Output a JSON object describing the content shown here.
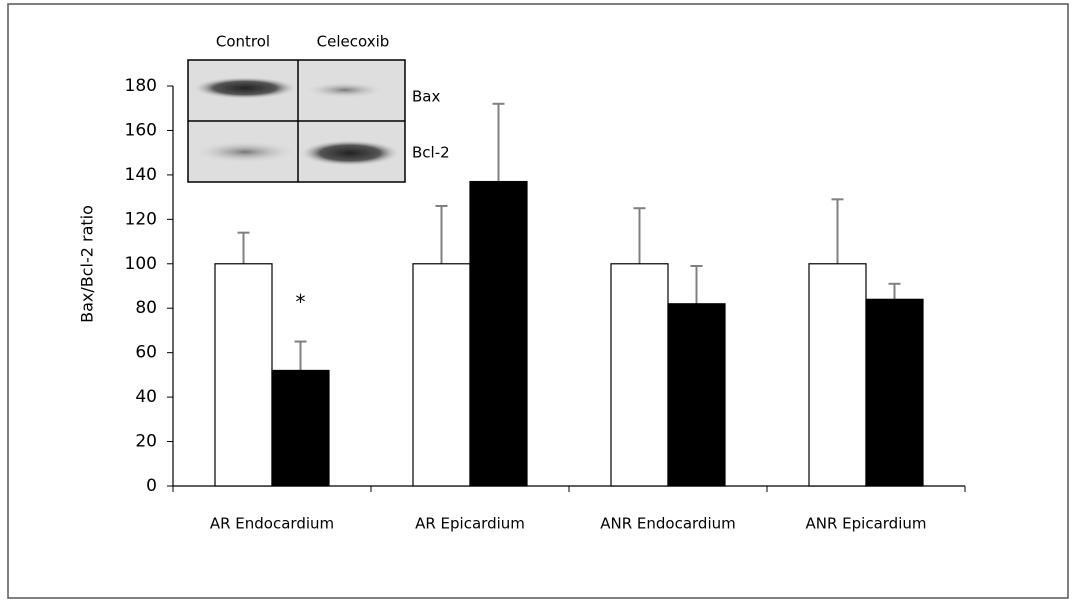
{
  "chart_data": {
    "type": "bar",
    "y_label": "Bax/Bcl-2 ratio",
    "categories": [
      "AR Endocardium",
      "AR Epicardium",
      "ANR Endocardium",
      "ANR Epicardium"
    ],
    "series": [
      {
        "name": "Control",
        "color": "#ffffff",
        "values": [
          100,
          100,
          100,
          100
        ],
        "errors": [
          14,
          26,
          25,
          29
        ]
      },
      {
        "name": "Celecoxib",
        "color": "#000000",
        "values": [
          52,
          137,
          82,
          84
        ],
        "errors": [
          13,
          35,
          17,
          7
        ]
      }
    ],
    "ylim": [
      0,
      180
    ],
    "yticks": [
      0,
      20,
      40,
      60,
      80,
      100,
      120,
      140,
      160,
      180
    ],
    "annotations": [
      "*"
    ],
    "blot_rows": [
      "Bax",
      "Bcl-2"
    ]
  }
}
